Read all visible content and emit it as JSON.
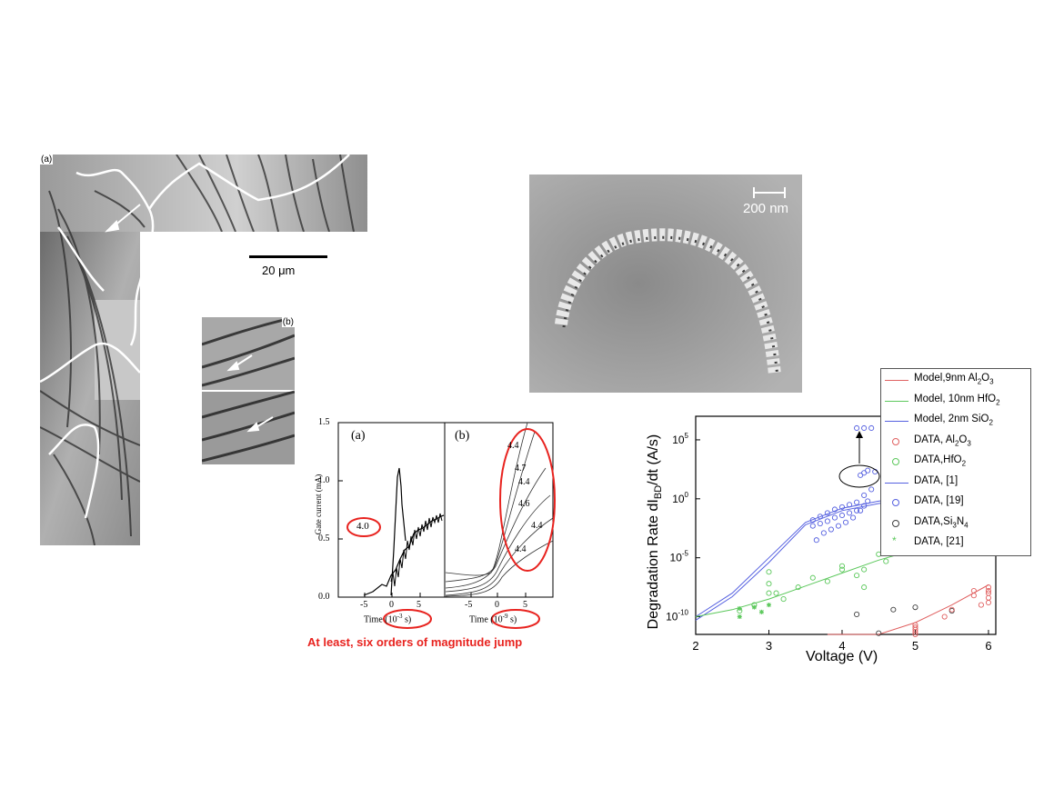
{
  "micrograph_left": {
    "panel_a_label": "(a)",
    "panel_b_label": "(b)",
    "scale_label": "20 μm"
  },
  "sem_image": {
    "scale_label": "200 nm"
  },
  "gate_current_figure": {
    "panel_a_label": "(a)",
    "panel_b_label": "(b)",
    "ylabel": "Gate current (mA)",
    "yticks": [
      "0.0",
      "0.5",
      "1.0",
      "1.5"
    ],
    "xticks": [
      "-5",
      "0",
      "5"
    ],
    "panel_a_xlabel_prefix": "Time",
    "panel_a_xlabel_unit": "(10",
    "panel_a_xlabel_exp": "-3",
    "panel_a_xlabel_suffix": " s)",
    "panel_b_xlabel_prefix": "Time",
    "panel_b_xlabel_unit": "(10",
    "panel_b_xlabel_exp": "-9",
    "panel_b_xlabel_suffix": " s)",
    "panel_a_voltage": "4.0",
    "panel_b_voltages": [
      "4.4",
      "4.7",
      "4.4",
      "4.6",
      "4.4",
      "4.4"
    ],
    "caption": "At least, six orders of magnitude jump",
    "highlight_color": "#e8231f"
  },
  "chart_data": {
    "type": "scatter",
    "xlabel": "Voltage (V)",
    "ylabel_parts": [
      "Degradation Rate dI",
      "BD",
      "/dt (A/s)"
    ],
    "xlim": [
      2,
      6.1
    ],
    "ylim_log10": [
      -11.5,
      7
    ],
    "x_ticks": [
      "2",
      "3",
      "4",
      "5",
      "6"
    ],
    "y_ticks": [
      {
        "base": "10",
        "exp": "5",
        "log": 5
      },
      {
        "base": "10",
        "exp": "0",
        "log": 0
      },
      {
        "base": "10",
        "exp": "-5",
        "log": -5
      },
      {
        "base": "10",
        "exp": "-10",
        "log": -10
      }
    ],
    "colors": {
      "red": "#e06060",
      "green": "#5cc85c",
      "blue": "#5560e0",
      "black": "#404040"
    },
    "legend": [
      {
        "kind": "line",
        "color": "red",
        "text": "Model,9nm Al",
        "sub": "2",
        "text2": "O",
        "sub2": "3"
      },
      {
        "kind": "line",
        "color": "green",
        "text": "Model, 10nm HfO",
        "sub": "2"
      },
      {
        "kind": "line",
        "color": "blue",
        "text": "Model, 2nm SiO",
        "sub": "2"
      },
      {
        "kind": "circle",
        "color": "red",
        "text": "DATA, Al",
        "sub": "2",
        "text2": "O",
        "sub2": "3"
      },
      {
        "kind": "circle",
        "color": "green",
        "text": "DATA,HfO",
        "sub": "2"
      },
      {
        "kind": "line",
        "color": "blue",
        "text": "DATA, [1]"
      },
      {
        "kind": "circle",
        "color": "blue",
        "text": "DATA, [19]"
      },
      {
        "kind": "circle",
        "color": "black",
        "text": "DATA,Si",
        "sub": "3",
        "text2": "N",
        "sub2": "4"
      },
      {
        "kind": "star",
        "color": "green",
        "text": "DATA, [21]"
      }
    ],
    "series": [
      {
        "color": "blue",
        "kind": "line",
        "x": [
          2.0,
          2.5,
          3.0,
          3.5,
          4.0,
          4.5,
          5.0
        ],
        "y": [
          -10.0,
          -8.0,
          -5.0,
          -2.0,
          -0.8,
          -0.2,
          0.2
        ]
      },
      {
        "color": "blue",
        "kind": "line",
        "x": [
          2.0,
          2.5,
          3.0,
          3.5,
          4.0,
          4.5,
          5.0
        ],
        "y": [
          -10.3,
          -8.3,
          -5.4,
          -2.2,
          -1.0,
          -0.4,
          0.0
        ]
      },
      {
        "color": "green",
        "kind": "line",
        "x": [
          2.0,
          2.5,
          3.0,
          3.5,
          4.0,
          4.5,
          5.0
        ],
        "y": [
          -10.0,
          -9.4,
          -8.5,
          -7.4,
          -6.3,
          -5.2,
          -4.3
        ]
      },
      {
        "color": "red",
        "kind": "line",
        "x": [
          3.8,
          4.5,
          5.0,
          5.5,
          6.0
        ],
        "y": [
          -12.0,
          -11.5,
          -10.5,
          -9.0,
          -7.3
        ]
      },
      {
        "color": "blue",
        "kind": "circle",
        "x": [
          3.6,
          3.6,
          3.7,
          3.7,
          3.8,
          3.8,
          3.9,
          3.9,
          4.0,
          4.0,
          4.1,
          4.1,
          4.2,
          4.2,
          4.3,
          4.3,
          4.4,
          3.65,
          3.75,
          3.85,
          3.95,
          4.05,
          4.15,
          4.25,
          4.35,
          4.25,
          4.3,
          4.35,
          4.45,
          4.2,
          4.3,
          4.4
        ],
        "y": [
          -2.3,
          -1.8,
          -2.1,
          -1.5,
          -1.9,
          -1.2,
          -1.6,
          -0.9,
          -1.4,
          -0.7,
          -1.2,
          -0.5,
          -1.0,
          -0.3,
          -0.6,
          0.3,
          0.8,
          -3.5,
          -2.9,
          -2.6,
          -2.3,
          -2.0,
          -1.6,
          -1.0,
          -0.2,
          2.0,
          2.2,
          2.4,
          2.3,
          6.0,
          6.0,
          6.0
        ]
      },
      {
        "color": "green",
        "kind": "circle",
        "x": [
          2.6,
          2.8,
          3.0,
          3.0,
          3.2,
          3.4,
          3.6,
          3.8,
          4.0,
          4.0,
          4.2,
          4.3,
          4.3,
          4.5,
          4.6,
          3.0,
          3.1
        ],
        "y": [
          -9.5,
          -9.0,
          -8.0,
          -7.2,
          -8.5,
          -7.5,
          -6.7,
          -7.0,
          -6.0,
          -5.7,
          -6.5,
          -6.0,
          -7.5,
          -4.7,
          -5.3,
          -6.2,
          -8.0
        ]
      },
      {
        "color": "green",
        "kind": "star",
        "x": [
          2.6,
          2.6,
          2.8,
          2.9,
          3.0
        ],
        "y": [
          -9.3,
          -10.0,
          -9.2,
          -9.6,
          -9.0
        ]
      },
      {
        "color": "black",
        "kind": "circle",
        "x": [
          4.2,
          4.5,
          4.7,
          5.0,
          5.5
        ],
        "y": [
          -9.8,
          -11.4,
          -9.4,
          -9.2,
          -9.5
        ]
      },
      {
        "color": "red",
        "kind": "circle",
        "x": [
          5.0,
          5.0,
          5.0,
          5.0,
          5.0,
          5.4,
          5.5,
          5.8,
          5.8,
          5.9,
          6.0,
          6.0,
          6.0,
          6.0,
          6.0
        ],
        "y": [
          -10.7,
          -10.9,
          -11.1,
          -11.3,
          -11.5,
          -10.0,
          -9.4,
          -7.8,
          -8.2,
          -9.0,
          -7.5,
          -7.8,
          -8.0,
          -8.4,
          -8.8
        ]
      }
    ]
  }
}
